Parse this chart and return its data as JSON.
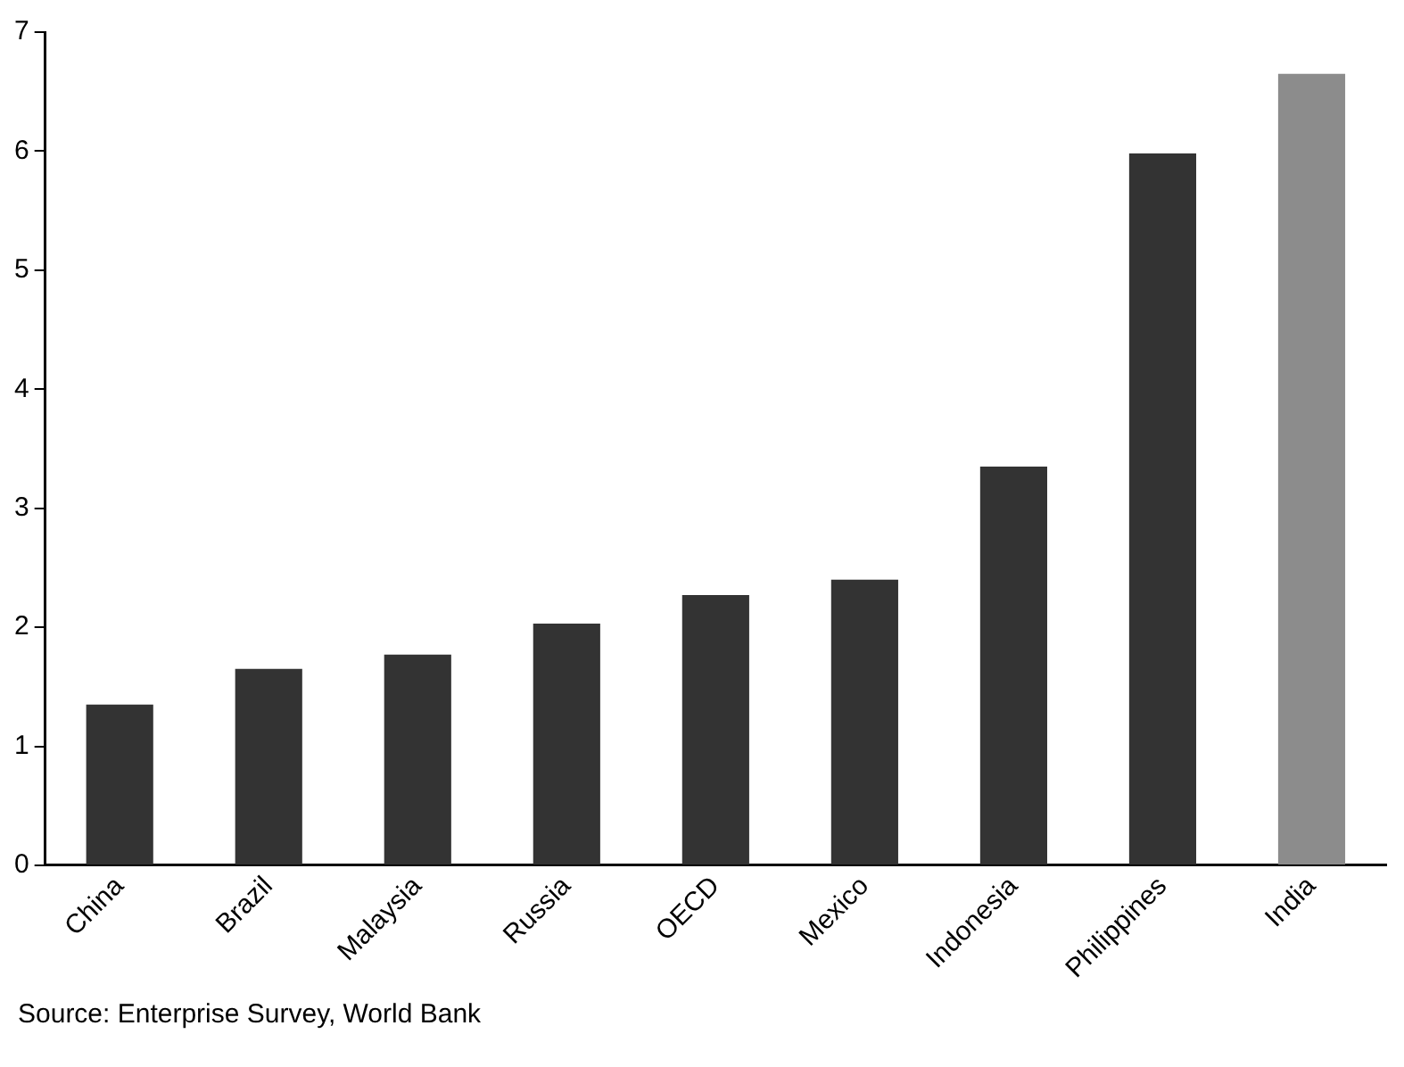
{
  "chart_data": {
    "type": "bar",
    "categories": [
      "China",
      "Brazil",
      "Malaysia",
      "Russia",
      "OECD",
      "Mexico",
      "Indonesia",
      "Philippines",
      "India"
    ],
    "values": [
      1.35,
      1.65,
      1.77,
      2.03,
      2.27,
      2.4,
      3.35,
      5.98,
      6.65
    ],
    "colors": [
      "#333333",
      "#333333",
      "#333333",
      "#333333",
      "#333333",
      "#333333",
      "#333333",
      "#333333",
      "#8c8c8c"
    ],
    "ylim": [
      0,
      7
    ],
    "yticks": [
      0,
      1,
      2,
      3,
      4,
      5,
      6,
      7
    ],
    "grid": false,
    "legend": false,
    "annotations": [
      "Source: Enterprise Survey, World Bank"
    ]
  }
}
